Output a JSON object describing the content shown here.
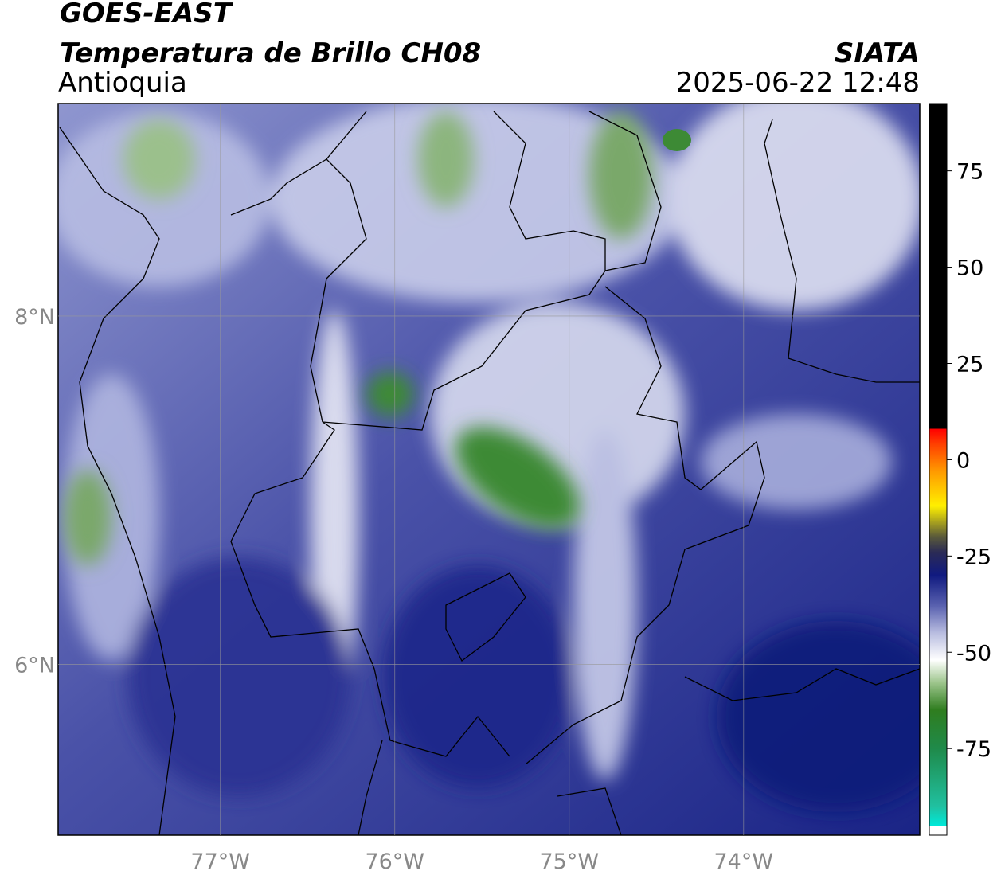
{
  "header": {
    "title": "GOES-EAST",
    "subtitle": "Temperatura de Brillo CH08",
    "region": "Antioquia",
    "source": "SIATA",
    "datetime": "2025-06-22 12:48"
  },
  "map": {
    "xlim": [
      -77.93,
      -72.99
    ],
    "ylim": [
      5.02,
      9.22
    ],
    "xticks": [
      {
        "value": -77,
        "label": "77°W"
      },
      {
        "value": -76,
        "label": "76°W"
      },
      {
        "value": -75,
        "label": "75°W"
      },
      {
        "value": -74,
        "label": "74°W"
      }
    ],
    "yticks": [
      {
        "value": 8,
        "label": "8°N"
      },
      {
        "value": 6,
        "label": "6°N"
      }
    ],
    "grid": true
  },
  "colorbar": {
    "lim": [
      -97.5,
      92.5
    ],
    "ticks": [
      75,
      50,
      25,
      0,
      -25,
      -50,
      -75
    ],
    "stops": [
      {
        "value": -97.5,
        "color": "#ffffff"
      },
      {
        "value": -95,
        "color": "#ffffff"
      },
      {
        "value": -95,
        "color": "#00e8d8"
      },
      {
        "value": -90,
        "color": "#20c0a0"
      },
      {
        "value": -75,
        "color": "#1f8a4a"
      },
      {
        "value": -65,
        "color": "#2f7d1f"
      },
      {
        "value": -58,
        "color": "#9bc48a"
      },
      {
        "value": -52,
        "color": "#ffffff"
      },
      {
        "value": -45,
        "color": "#b9bde0"
      },
      {
        "value": -38,
        "color": "#5a62b0"
      },
      {
        "value": -30,
        "color": "#101a80"
      },
      {
        "value": -24,
        "color": "#2b2b55"
      },
      {
        "value": -20,
        "color": "#5a5a3a"
      },
      {
        "value": -12,
        "color": "#fff000"
      },
      {
        "value": -3,
        "color": "#ff9a00"
      },
      {
        "value": 4,
        "color": "#ff4000"
      },
      {
        "value": 8,
        "color": "#ff0000"
      },
      {
        "value": 8,
        "color": "#000000"
      },
      {
        "value": 92.5,
        "color": "#000000"
      }
    ]
  }
}
